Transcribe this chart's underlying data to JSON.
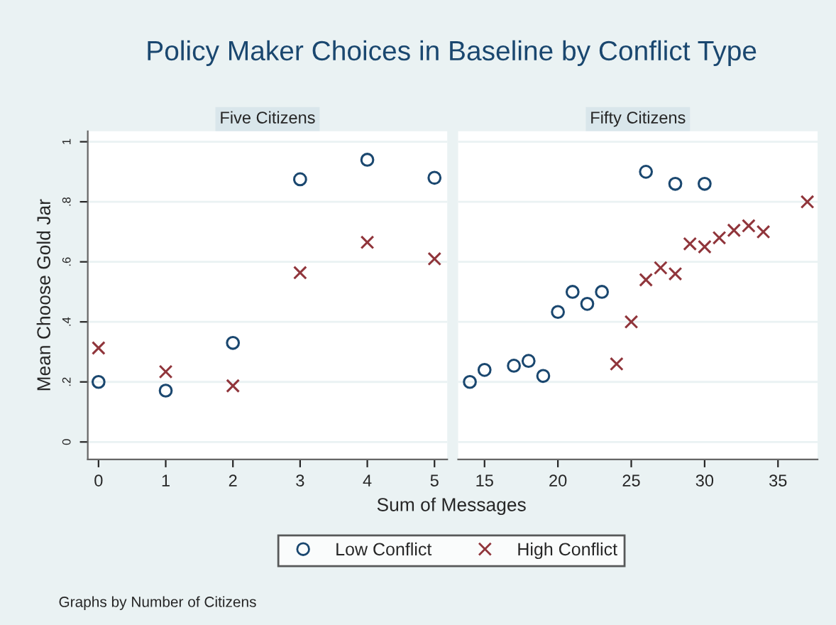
{
  "chart_data": [
    {
      "type": "scatter",
      "title": "Five Citizens",
      "ylabel": "Mean Choose Gold Jar",
      "xlabel": "Sum of Messages",
      "annotations": [
        "Policy Maker Choices in Baseline by Conflict Type",
        "Graphs by Number of Citizens"
      ],
      "x": [
        0,
        1,
        2,
        3,
        4,
        5
      ],
      "series": [
        {
          "name": "Low Conflict",
          "color": "#1a476f",
          "marker": "circle",
          "values": [
            0.2,
            0.171,
            0.33,
            0.875,
            0.94,
            0.88
          ]
        },
        {
          "name": "High Conflict",
          "color": "#90353b",
          "marker": "cross",
          "values": [
            0.313,
            0.234,
            0.187,
            0.564,
            0.665,
            0.61
          ]
        }
      ],
      "xlim": [
        -0.16,
        5.19
      ],
      "xticks": [
        0,
        1,
        2,
        3,
        4,
        5
      ],
      "ylim": [
        -0.058,
        1.035
      ],
      "yticks": [
        {
          "value": 0,
          "label": "0"
        },
        {
          "value": 0.2,
          "label": ".2"
        },
        {
          "value": 0.4,
          "label": ".4"
        },
        {
          "value": 0.6,
          "label": ".6"
        },
        {
          "value": 0.8,
          "label": ".8"
        },
        {
          "value": 1,
          "label": "1"
        }
      ],
      "grid": "y",
      "legend": "bottom"
    },
    {
      "type": "scatter",
      "title": "Fifty Citizens",
      "series": [
        {
          "color": "#1a476f",
          "marker": "circle",
          "x": [
            14,
            15,
            17,
            18,
            19,
            20,
            21,
            22,
            23,
            26,
            28,
            30
          ],
          "values": [
            0.2,
            0.24,
            0.254,
            0.27,
            0.22,
            0.433,
            0.5,
            0.46,
            0.5,
            0.9,
            0.86,
            0.86
          ]
        },
        {
          "color": "#90353b",
          "marker": "cross",
          "x": [
            24,
            25,
            26,
            27,
            28,
            29,
            30,
            31,
            32,
            33,
            34,
            37
          ],
          "values": [
            0.26,
            0.4,
            0.54,
            0.58,
            0.56,
            0.66,
            0.65,
            0.68,
            0.705,
            0.72,
            0.7,
            0.8
          ]
        }
      ],
      "xlim": [
        13.2,
        37.7
      ],
      "xticks": [
        15,
        20,
        25,
        30,
        35
      ],
      "ylim": [
        -0.058,
        1.035
      ],
      "yticks": [
        {
          "value": 0,
          "label": null
        },
        {
          "value": 0.2,
          "label": null
        },
        {
          "value": 0.4,
          "label": null
        },
        {
          "value": 0.6,
          "label": null
        },
        {
          "value": 0.8,
          "label": null
        },
        {
          "value": 1,
          "label": null
        }
      ],
      "grid": "y",
      "tick_labels": "x"
    }
  ]
}
